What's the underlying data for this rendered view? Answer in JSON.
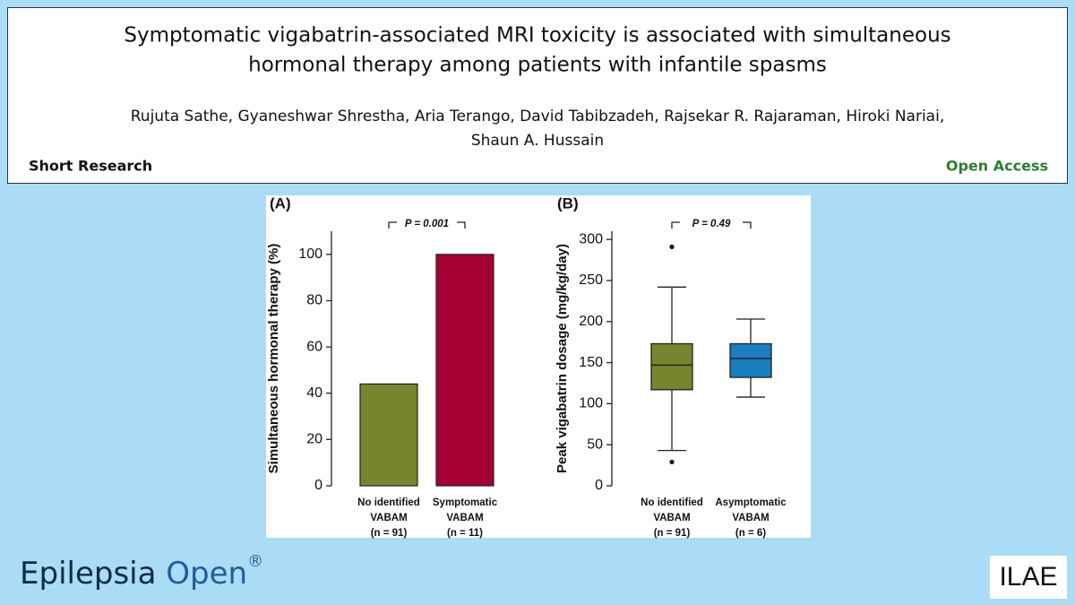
{
  "header": {
    "title": [
      "Symptomatic vigabatrin-associated MRI toxicity is associated with simultaneous",
      "hormonal therapy among patients with infantile spasms"
    ],
    "authors": [
      "Rujuta Sathe, Gyaneshwar Shrestha, Aria Terango, David Tabibzadeh, Rajsekar R. Rajaraman, Hiroki Nariai,",
      "Shaun A. Hussain"
    ],
    "article_type": "Short Research",
    "access": "Open Access"
  },
  "footer": {
    "journal": [
      "Epilepsia",
      "Open",
      "®"
    ],
    "logo": "ILAE"
  },
  "chart_data": [
    {
      "type": "bar",
      "panel": "(A)",
      "ylabel": "Simultaneous hormonal therapy (%)",
      "annotation": "P = 0.001",
      "categories": [
        [
          "No identified",
          "VABAM",
          "(n = 91)"
        ],
        [
          "Symptomatic",
          "VABAM",
          "(n = 11)"
        ]
      ],
      "values": [
        44,
        100
      ],
      "colors": [
        "#76862e",
        "#a50034"
      ],
      "ylim": [
        0,
        110
      ],
      "yticks": [
        0,
        20,
        40,
        60,
        80,
        100
      ]
    },
    {
      "type": "box",
      "panel": "(B)",
      "ylabel": "Peak vigabatrin dosage (mg/kg/day)",
      "annotation": "P = 0.49",
      "categories": [
        [
          "No identified",
          "VABAM",
          "(n = 91)"
        ],
        [
          "Asymptomatic",
          "VABAM",
          "(n = 6)"
        ]
      ],
      "boxes": [
        {
          "whislo": 43,
          "q1": 117,
          "med": 147,
          "q3": 173,
          "whishi": 242,
          "fliers": [
            291,
            29
          ]
        },
        {
          "whislo": 108,
          "q1": 132,
          "med": 155,
          "q3": 173,
          "whishi": 203,
          "fliers": []
        }
      ],
      "colors": [
        "#76862e",
        "#1a7fc1"
      ],
      "ylim": [
        0,
        310
      ],
      "yticks": [
        0,
        50,
        100,
        150,
        200,
        250,
        300
      ]
    }
  ]
}
